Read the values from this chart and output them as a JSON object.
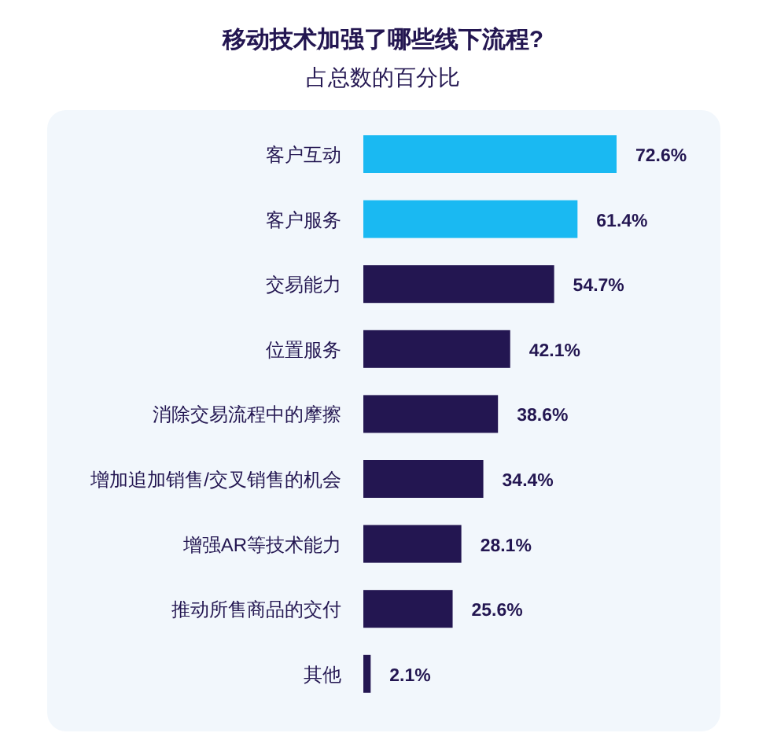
{
  "chart_data": {
    "type": "bar",
    "orientation": "horizontal",
    "title": "移动技术加强了哪些线下流程?",
    "subtitle": "占总数的百分比",
    "categories": [
      "客户互动",
      "客户服务",
      "交易能力",
      "位置服务",
      "消除交易流程中的摩擦",
      "增加追加销售/交叉销售的机会",
      "增强AR等技术能力",
      "推动所售商品的交付",
      "其他"
    ],
    "values": [
      72.6,
      61.4,
      54.7,
      42.1,
      38.6,
      34.4,
      28.1,
      25.6,
      2.1
    ],
    "value_labels": [
      "72.6%",
      "61.4%",
      "54.7%",
      "42.1%",
      "38.6%",
      "34.4%",
      "28.1%",
      "25.6%",
      "2.1%"
    ],
    "colors": [
      "#1ab9f2",
      "#1ab9f2",
      "#231651",
      "#231651",
      "#231651",
      "#231651",
      "#231651",
      "#231651",
      "#231651"
    ]
  }
}
